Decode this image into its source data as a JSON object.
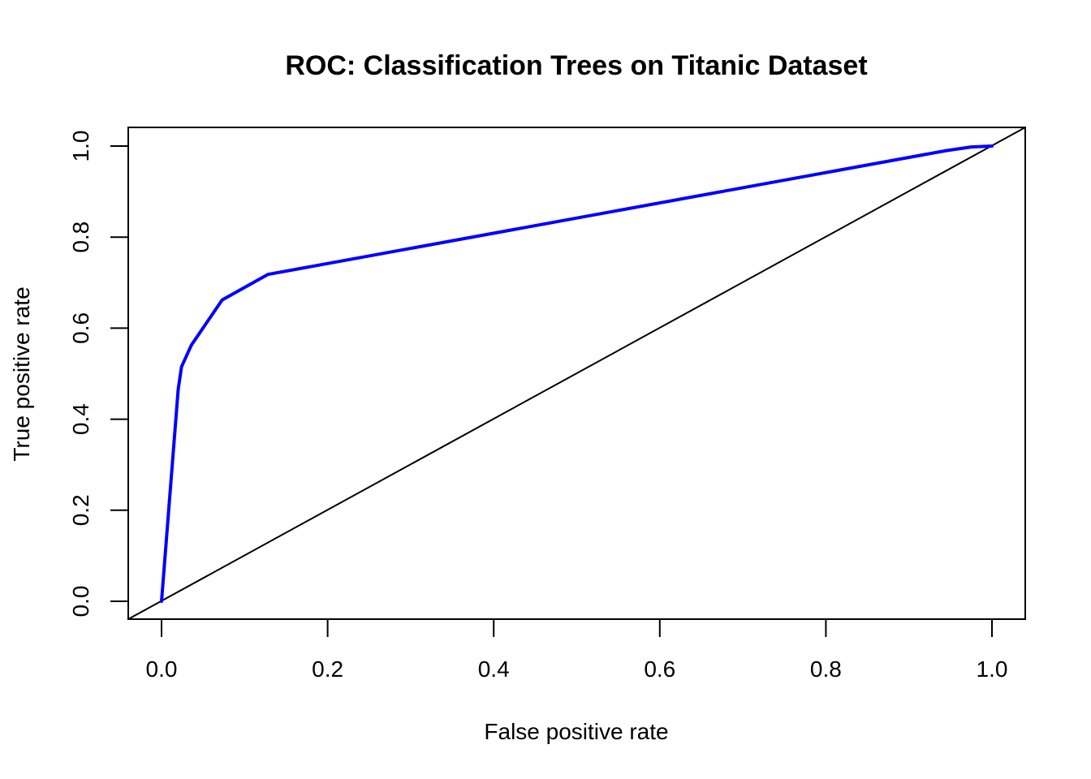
{
  "chart_data": {
    "type": "line",
    "title": "ROC:  Classification Trees on Titanic Dataset",
    "xlabel": "False positive rate",
    "ylabel": "True positive rate",
    "xlim": [
      0,
      1
    ],
    "ylim": [
      0,
      1
    ],
    "x_ticks": [
      "0.0",
      "0.2",
      "0.4",
      "0.6",
      "0.8",
      "1.0"
    ],
    "y_ticks": [
      "0.0",
      "0.2",
      "0.4",
      "0.6",
      "0.8",
      "1.0"
    ],
    "grid": false,
    "series": [
      {
        "color": "#0000ff",
        "x": [
          0.0,
          0.02,
          0.024,
          0.036,
          0.073,
          0.128,
          0.945,
          0.975,
          1.0
        ],
        "y": [
          0.0,
          0.465,
          0.515,
          0.563,
          0.662,
          0.718,
          0.99,
          0.998,
          1.0
        ]
      },
      {
        "color": "#000000",
        "x": [
          0.0,
          1.0
        ],
        "y": [
          0.0,
          1.0
        ]
      }
    ]
  }
}
